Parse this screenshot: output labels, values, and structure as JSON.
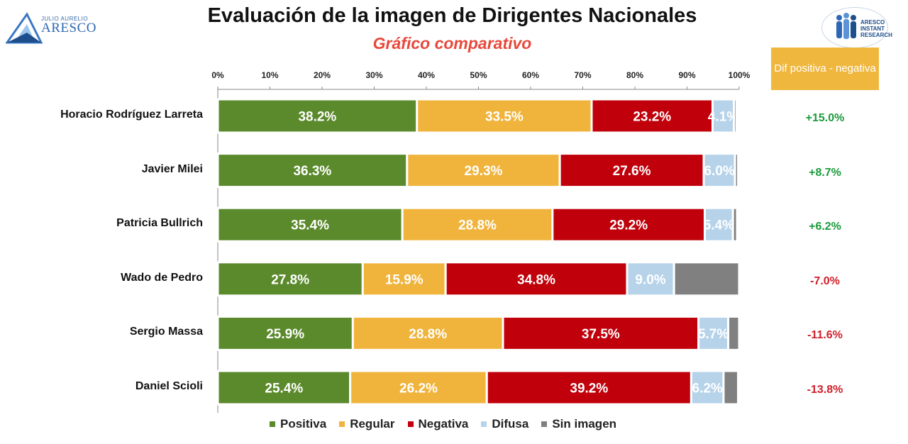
{
  "header": {
    "title": "Evaluación de la imagen de Dirigentes Nacionales",
    "subtitle": "Gráfico comparativo",
    "left_logo_small": "JULIO AURELIO",
    "left_logo_big": "ARESCO",
    "right_logo_text": [
      "ARESCO",
      "INSTANT",
      "RESEARCH"
    ]
  },
  "dif_column": {
    "header": "Dif positiva - negativa",
    "positive_color": "#1a9b3b",
    "negative_color": "#d0202a"
  },
  "chart_data": {
    "type": "bar",
    "orientation": "horizontal",
    "stacked": true,
    "percent_stacked": true,
    "title": "Evaluación de la imagen de Dirigentes Nacionales",
    "subtitle": "Gráfico comparativo",
    "xlim": [
      0,
      100
    ],
    "x_ticks": [
      "0%",
      "10%",
      "20%",
      "30%",
      "40%",
      "50%",
      "60%",
      "70%",
      "80%",
      "90%",
      "100%"
    ],
    "legend_position": "bottom",
    "categories": [
      "Horacio Rodríguez Larreta",
      "Javier Milei",
      "Patricia Bullrich",
      "Wado de Pedro",
      "Sergio Massa",
      "Daniel Scioli"
    ],
    "series": [
      {
        "name": "Positiva",
        "color": "#5b8a2c",
        "values": [
          38.2,
          36.3,
          35.4,
          27.8,
          25.9,
          25.4
        ],
        "labels": [
          "38.2%",
          "36.3%",
          "35.4%",
          "27.8%",
          "25.9%",
          "25.4%"
        ]
      },
      {
        "name": "Regular",
        "color": "#f0b43c",
        "values": [
          33.5,
          29.3,
          28.8,
          15.9,
          28.8,
          26.2
        ],
        "labels": [
          "33.5%",
          "29.3%",
          "28.8%",
          "15.9%",
          "28.8%",
          "26.2%"
        ]
      },
      {
        "name": "Negativa",
        "color": "#c0000b",
        "values": [
          23.2,
          27.6,
          29.2,
          34.8,
          37.5,
          39.2
        ],
        "labels": [
          "23.2%",
          "27.6%",
          "29.2%",
          "34.8%",
          "37.5%",
          "39.2%"
        ]
      },
      {
        "name": "Difusa",
        "color": "#b6d3ea",
        "values": [
          4.1,
          6.0,
          5.4,
          9.0,
          5.7,
          6.2
        ],
        "labels": [
          "4.1%",
          "6.0%",
          "5.4%",
          "9.0%",
          "5.7%",
          "6.2%"
        ]
      },
      {
        "name": "Sin imagen",
        "color": "#808080",
        "values": [
          0.5,
          0.6,
          0.8,
          12.5,
          2.1,
          2.8
        ],
        "labels": [
          "",
          "",
          "",
          "",
          "",
          ""
        ]
      }
    ],
    "differences": [
      "+15.0%",
      "+8.7%",
      "+6.2%",
      "-7.0%",
      "-11.6%",
      "-13.8%"
    ]
  }
}
